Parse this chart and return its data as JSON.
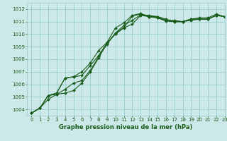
{
  "xlabel": "Graphe pression niveau de la mer (hPa)",
  "xlim": [
    -0.5,
    23
  ],
  "ylim": [
    1003.5,
    1012.5
  ],
  "yticks": [
    1004,
    1005,
    1006,
    1007,
    1008,
    1009,
    1010,
    1011,
    1012
  ],
  "xticks": [
    0,
    1,
    2,
    3,
    4,
    5,
    6,
    7,
    8,
    9,
    10,
    11,
    12,
    13,
    14,
    15,
    16,
    17,
    18,
    19,
    20,
    21,
    22,
    23
  ],
  "bg_color": "#cce8e8",
  "grid_color": "#99cccc",
  "line_color": "#1a5c1a",
  "series": [
    [
      1003.7,
      1004.1,
      1004.8,
      1005.2,
      1005.3,
      1005.5,
      1006.1,
      1007.0,
      1008.1,
      1009.3,
      1010.0,
      1010.5,
      1010.8,
      1011.5,
      1011.4,
      1011.4,
      1011.1,
      1011.0,
      1011.0,
      1011.1,
      1011.2,
      1011.2,
      1011.5,
      1011.4
    ],
    [
      1003.7,
      1004.1,
      1005.1,
      1005.2,
      1005.6,
      1006.1,
      1006.3,
      1007.1,
      1008.2,
      1009.2,
      1010.1,
      1010.7,
      1011.1,
      1011.55,
      1011.5,
      1011.4,
      1011.2,
      1011.0,
      1011.0,
      1011.2,
      1011.2,
      1011.2,
      1011.5,
      1011.4
    ],
    [
      1003.7,
      1004.1,
      1005.1,
      1005.3,
      1006.5,
      1006.6,
      1006.7,
      1007.5,
      1008.3,
      1009.3,
      1010.05,
      1010.55,
      1011.45,
      1011.6,
      1011.4,
      1011.3,
      1011.05,
      1011.0,
      1011.0,
      1011.2,
      1011.2,
      1011.2,
      1011.5,
      1011.4
    ],
    [
      1003.7,
      1004.1,
      1005.1,
      1005.3,
      1006.5,
      1006.6,
      1007.0,
      1007.7,
      1008.7,
      1009.35,
      1010.5,
      1010.9,
      1011.5,
      1011.65,
      1011.4,
      1011.3,
      1011.1,
      1011.1,
      1011.0,
      1011.2,
      1011.3,
      1011.3,
      1011.6,
      1011.4
    ]
  ],
  "marker": "D",
  "marker_size": 2.0,
  "linewidth": 0.8,
  "tick_fontsize": 5.0,
  "xlabel_fontsize": 6.0
}
